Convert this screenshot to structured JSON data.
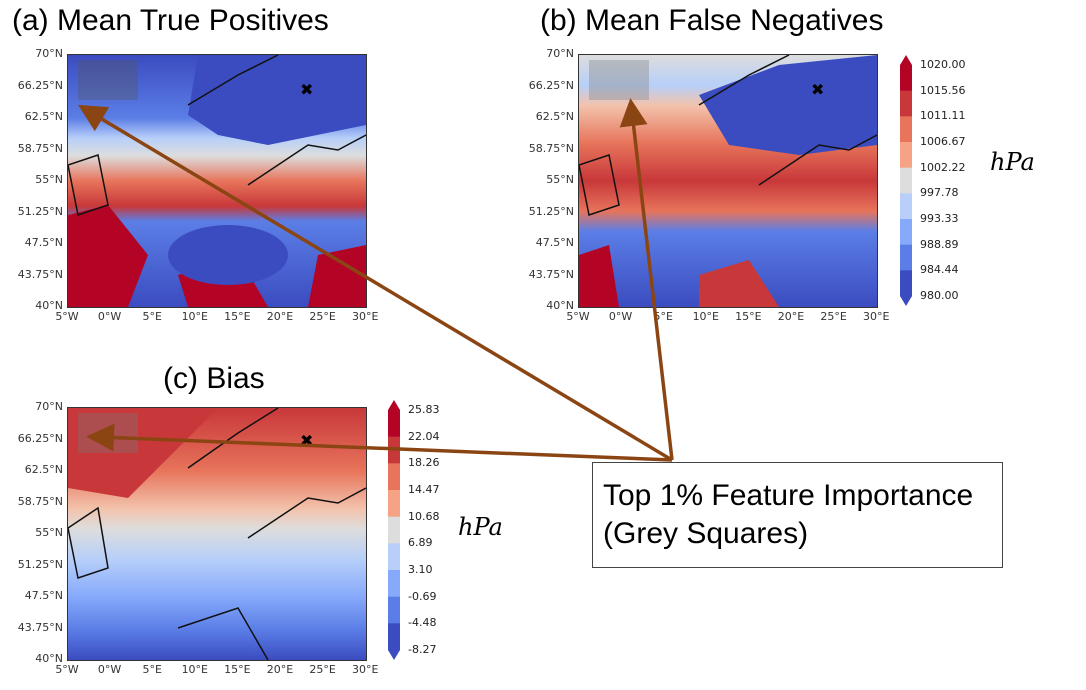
{
  "panels": {
    "a": {
      "title": "(a) Mean True Positives"
    },
    "b": {
      "title": "(b) Mean False Negatives"
    },
    "c": {
      "title": "(c) Bias"
    }
  },
  "lat_ticks": [
    "70°N",
    "66.25°N",
    "62.5°N",
    "58.75°N",
    "55°N",
    "51.25°N",
    "47.5°N",
    "43.75°N",
    "40°N"
  ],
  "lon_ticks": [
    "5°W",
    "0°W",
    "5°E",
    "10°E",
    "15°E",
    "20°E",
    "25°E",
    "30°E"
  ],
  "colorbar_pressure": {
    "ticks": [
      "1020.00",
      "1015.56",
      "1011.11",
      "1006.67",
      "1002.22",
      "997.78",
      "993.33",
      "988.89",
      "984.44",
      "980.00"
    ],
    "unit": "hPa"
  },
  "colorbar_bias": {
    "ticks": [
      "25.83",
      "22.04",
      "18.26",
      "14.47",
      "10.68",
      "6.89",
      "3.10",
      "-0.69",
      "-4.48",
      "-8.27"
    ],
    "unit": "hPa"
  },
  "annotation": {
    "line1": "Top 1% Feature Importance",
    "line2": "(Grey Squares)"
  },
  "colors": {
    "arrow": "#8B4513",
    "cmap": [
      "#3b4cc0",
      "#5b7ee6",
      "#86a9fb",
      "#b7cff9",
      "#dddddd",
      "#f3c3ac",
      "#f6a284",
      "#e7745b",
      "#c8383a",
      "#b40426"
    ]
  }
}
